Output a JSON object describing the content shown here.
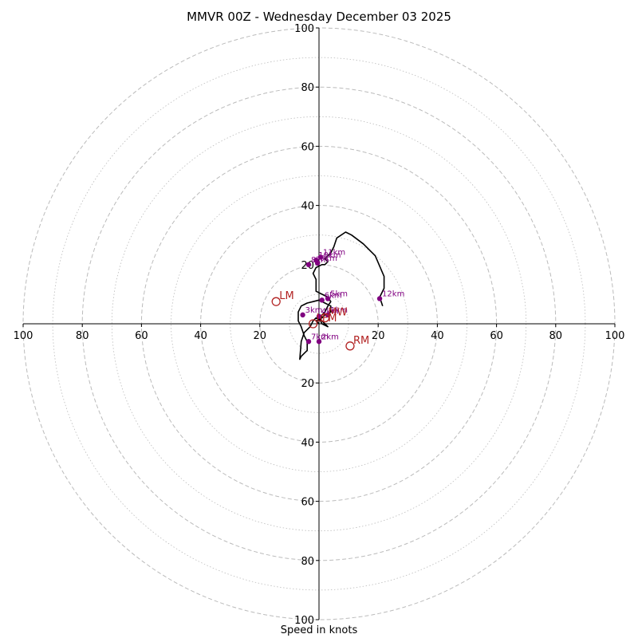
{
  "chart_data": {
    "type": "hodograph",
    "title": "MMVR 00Z - Wednesday December 03 2025",
    "xlabel": "Speed in knots",
    "ylabel": "",
    "range": [
      -100,
      100
    ],
    "ring_major_step": 20,
    "ring_minor_step": 10,
    "grid": true,
    "x_ticks": [
      "100",
      "80",
      "60",
      "40",
      "20",
      "20",
      "40",
      "60",
      "80",
      "100"
    ],
    "x_tick_values": [
      -100,
      -80,
      -60,
      -40,
      -20,
      20,
      40,
      60,
      80,
      100
    ],
    "y_ticks": [
      "100",
      "80",
      "60",
      "40",
      "20",
      "20",
      "40",
      "60",
      "80",
      "100"
    ],
    "y_tick_values": [
      100,
      80,
      60,
      40,
      20,
      -20,
      -40,
      -60,
      -80,
      -100
    ],
    "trace": [
      [
        0,
        0
      ],
      [
        -1,
        1
      ],
      [
        1,
        2
      ],
      [
        2,
        3
      ],
      [
        4,
        4
      ],
      [
        4,
        6
      ],
      [
        2,
        7
      ],
      [
        0,
        8
      ],
      [
        -2,
        7.5
      ],
      [
        -4,
        7
      ],
      [
        -6,
        6
      ],
      [
        -7,
        4
      ],
      [
        -7,
        1
      ],
      [
        -6,
        -1
      ],
      [
        -5,
        -4
      ],
      [
        -4,
        -6
      ],
      [
        -4,
        -9
      ],
      [
        -6,
        -11
      ],
      [
        -6.5,
        -12
      ],
      [
        -6,
        -6
      ],
      [
        -5,
        -3
      ],
      [
        -3,
        -1
      ],
      [
        -2,
        1
      ],
      [
        -1,
        2
      ],
      [
        1,
        1
      ],
      [
        2,
        0
      ],
      [
        3,
        -1
      ],
      [
        1,
        0
      ],
      [
        0.5,
        1
      ],
      [
        1,
        3
      ],
      [
        2,
        4
      ],
      [
        3,
        6
      ],
      [
        4,
        7.5
      ],
      [
        3,
        9
      ],
      [
        1,
        10
      ],
      [
        -1,
        11
      ],
      [
        -1,
        15
      ],
      [
        -2,
        17
      ],
      [
        -1,
        19
      ],
      [
        1,
        20
      ],
      [
        2,
        20
      ],
      [
        3,
        21
      ],
      [
        2,
        22
      ],
      [
        4,
        24
      ],
      [
        5,
        26
      ],
      [
        6,
        29
      ],
      [
        9,
        31
      ],
      [
        11,
        30
      ],
      [
        15,
        27
      ],
      [
        19,
        23
      ],
      [
        22,
        16
      ],
      [
        22,
        12
      ],
      [
        20.5,
        9
      ],
      [
        21.5,
        6
      ]
    ],
    "height_markers": [
      {
        "label": "1km",
        "u": 3,
        "v": 3
      },
      {
        "label": "2km",
        "u": 0,
        "v": -6
      },
      {
        "label": "3km",
        "u": -5.5,
        "v": 3
      },
      {
        "label": "4km",
        "u": 0,
        "v": 2.5
      },
      {
        "label": "5km",
        "u": 3,
        "v": 8.5
      },
      {
        "label": "6km",
        "u": 1,
        "v": 8
      },
      {
        "label": "7km",
        "u": -3.5,
        "v": -6
      },
      {
        "label": "8km",
        "u": -3.5,
        "v": 20
      },
      {
        "label": "9km",
        "u": -0.5,
        "v": 20.5
      },
      {
        "label": "10km",
        "u": -1,
        "v": 21.5
      },
      {
        "label": "11km",
        "u": 0.5,
        "v": 22.5
      },
      {
        "label": "12km",
        "u": 20.5,
        "v": 8.5
      }
    ],
    "storm_markers": [
      {
        "label": "LM",
        "u": -14.5,
        "v": 7.5
      },
      {
        "label": "RM",
        "u": 10.5,
        "v": -7.5
      },
      {
        "label": "LFM",
        "u": -2,
        "v": 0
      },
      {
        "label": "MW",
        "u": 2,
        "v": 2
      }
    ],
    "colors": {
      "trace": "#000000",
      "height_marker": "#800080",
      "storm_marker": "#b22222",
      "grid": "#bbbbbb",
      "axis": "#000000"
    }
  }
}
